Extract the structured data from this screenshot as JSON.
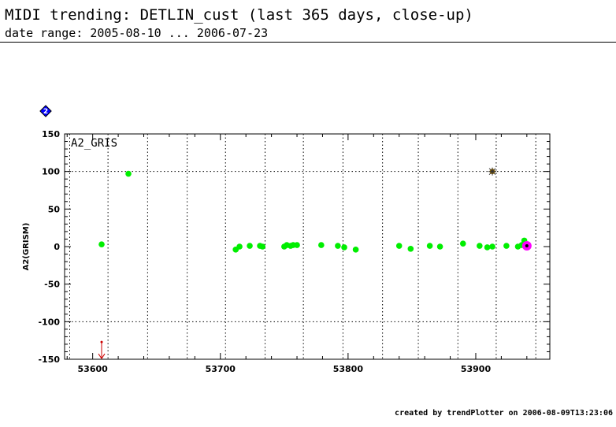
{
  "header": {
    "title": "MIDI trending: DETLIN_cust (last 365 days, close-up)",
    "subtitle": "date range: 2005-08-10 ... 2006-07-23"
  },
  "footer": {
    "text": "created by trendPlotter on 2006-08-09T13:23:06"
  },
  "chart_data": {
    "type": "scatter",
    "title": "",
    "panel_label": "A2_GRIS",
    "badge": "2",
    "xlabel": "",
    "ylabel": "A2(GRISM)",
    "xlim": [
      53578,
      53958
    ],
    "ylim": [
      -150,
      150
    ],
    "x_ticks": [
      53600,
      53700,
      53800,
      53900
    ],
    "y_ticks": [
      150,
      100,
      50,
      0,
      -50,
      -100,
      -150
    ],
    "x_gridlines": [
      53582,
      53612,
      53643,
      53674,
      53704,
      53735,
      53765,
      53796,
      53827,
      53855,
      53886,
      53916,
      53947
    ],
    "y_gridlines": [
      100,
      -100
    ],
    "grid": true,
    "colors": {
      "points": "#00ee00",
      "star": "#a07000",
      "outlier_arrow": "#cc0000",
      "highlight": "#ff00ff",
      "badge": "#0000ff"
    },
    "series": [
      {
        "marker": "green-dot",
        "points": [
          [
            53607,
            3
          ],
          [
            53628,
            97
          ],
          [
            53712,
            -4
          ],
          [
            53715,
            0
          ],
          [
            53723,
            1
          ],
          [
            53731,
            1
          ],
          [
            53733,
            0
          ],
          [
            53750,
            0
          ],
          [
            53752,
            2
          ],
          [
            53755,
            1
          ],
          [
            53757,
            2
          ],
          [
            53760,
            2
          ],
          [
            53779,
            2
          ],
          [
            53792,
            1
          ],
          [
            53797,
            -1
          ],
          [
            53806,
            -4
          ],
          [
            53840,
            1
          ],
          [
            53849,
            -3
          ],
          [
            53864,
            1
          ],
          [
            53872,
            0
          ],
          [
            53890,
            4
          ],
          [
            53903,
            1
          ],
          [
            53909,
            -1
          ],
          [
            53913,
            0
          ],
          [
            53924,
            1
          ],
          [
            53933,
            0
          ],
          [
            53936,
            2
          ],
          [
            53938,
            8
          ]
        ]
      },
      {
        "marker": "star",
        "points": [
          [
            53913,
            100
          ]
        ]
      },
      {
        "marker": "highlight",
        "points": [
          [
            53940,
            1
          ]
        ]
      },
      {
        "marker": "down-arrow",
        "points": [
          [
            53607,
            -127
          ]
        ]
      }
    ]
  }
}
